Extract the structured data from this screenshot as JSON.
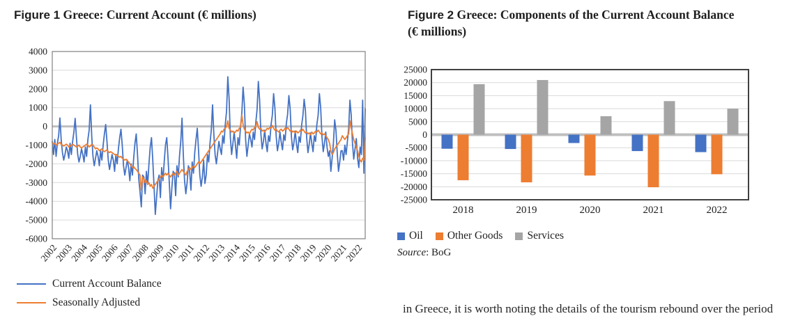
{
  "figure1": {
    "title_prefix": "Figure 1",
    "title": " Greece: Current Account (€ millions)",
    "legend": [
      {
        "label": "Current Account Balance",
        "color": "#4472C4"
      },
      {
        "label": "Seasonally Adjusted",
        "color": "#ED7D31"
      }
    ]
  },
  "figure2": {
    "title_prefix": "Figure 2",
    "title": " Greece: Components of the Current Account Balance (€ millions)",
    "legend": [
      {
        "label": "Oil",
        "color": "#4472C4"
      },
      {
        "label": "Other Goods",
        "color": "#ED7D31"
      },
      {
        "label": "Services",
        "color": "#A5A5A5"
      }
    ],
    "source_label": "Source",
    "source_text": ": BoG"
  },
  "bottom_text": {
    "fragment": "in Greece, it is worth noting the details of the tourism rebound over the period"
  },
  "chart_data": [
    {
      "type": "line",
      "title": "Greece: Current Account (€ millions)",
      "frequency": "monthly",
      "x_start": "2002-01",
      "x_end": "2022-07",
      "xticklabels": [
        "2002",
        "2003",
        "2004",
        "2005",
        "2006",
        "2007",
        "2008",
        "2009",
        "2010",
        "2011",
        "2012",
        "2013",
        "2014",
        "2015",
        "2016",
        "2017",
        "2018",
        "2019",
        "2020",
        "2021",
        "2022"
      ],
      "ylim": [
        -6000,
        4000
      ],
      "yticks": [
        4000,
        3000,
        2000,
        1000,
        0,
        -1000,
        -2000,
        -3000,
        -4000,
        -5000,
        -6000
      ],
      "grid": true,
      "legend_position": "bottom-left",
      "colors": {
        "grid": "#D9D9D9",
        "zero_line": "#BFBFBF",
        "border": "#808080"
      },
      "series": [
        {
          "name": "Current Account Balance",
          "color": "#4472C4",
          "values_by_year": {
            "2002": [
              -800,
              -1500,
              -700,
              -1600,
              -900,
              -500,
              450,
              -700,
              -1400,
              -1800,
              -1500,
              -1100
            ],
            "2003": [
              -1300,
              -1700,
              -900,
              -1500,
              -800,
              -300,
              430,
              -600,
              -1500,
              -1900,
              -1600,
              -1200
            ],
            "2004": [
              -1500,
              -1900,
              -1100,
              -1600,
              -700,
              -200,
              1150,
              -500,
              -1600,
              -2100,
              -1700,
              -1300
            ],
            "2005": [
              -1600,
              -2100,
              -1300,
              -1800,
              -1000,
              -400,
              100,
              -800,
              -1800,
              -2300,
              -1900,
              -1500
            ],
            "2006": [
              -1800,
              -2400,
              -1500,
              -2000,
              -1200,
              -600,
              -150,
              -1000,
              -2100,
              -2600,
              -2200,
              -1800
            ],
            "2007": [
              -2200,
              -2900,
              -2000,
              -2600,
              -1700,
              -900,
              -400,
              -1500,
              -2800,
              -3500,
              -4300,
              -2600
            ],
            "2008": [
              -2700,
              -3600,
              -2400,
              -3100,
              -2000,
              -1100,
              -600,
              -1800,
              -3200,
              -4700,
              -3800,
              -2900
            ],
            "2009": [
              -2600,
              -3800,
              -2200,
              -2900,
              -1900,
              -1000,
              -600,
              -1700,
              -3000,
              -4400,
              -3300,
              -2400
            ],
            "2010": [
              -2500,
              -3700,
              -2100,
              -2700,
              -1600,
              -800,
              440,
              -1500,
              -2900,
              -3600,
              -3000,
              -2100
            ],
            "2011": [
              -2400,
              -3400,
              -1900,
              -2500,
              -1400,
              -700,
              -100,
              -1300,
              -2600,
              -3200,
              -2700,
              -1800
            ],
            "2012": [
              -3050,
              -2600,
              -1500,
              -1900,
              -900,
              -200,
              1150,
              -400,
              -1500,
              -2000,
              -1400,
              -800
            ],
            "2013": [
              -1200,
              -1500,
              -500,
              -900,
              100,
              800,
              2650,
              1500,
              -600,
              -1500,
              -900,
              -300
            ],
            "2014": [
              -1000,
              -1700,
              -600,
              -1000,
              0,
              700,
              2100,
              1200,
              -700,
              -1600,
              -1000,
              -400
            ],
            "2015": [
              -700,
              -1100,
              -300,
              -700,
              200,
              900,
              2400,
              1400,
              -400,
              -1200,
              -800,
              -200
            ],
            "2016": [
              -900,
              -1350,
              -500,
              -800,
              100,
              600,
              1750,
              1000,
              -500,
              -1300,
              -900,
              -300
            ],
            "2017": [
              -850,
              -1250,
              -450,
              -750,
              150,
              650,
              1650,
              950,
              -550,
              -1250,
              -850,
              -250
            ],
            "2018": [
              -950,
              -1400,
              -550,
              -850,
              50,
              550,
              1450,
              850,
              -600,
              -1400,
              -950,
              -350
            ],
            "2019": [
              -900,
              -1350,
              -500,
              -800,
              100,
              600,
              1750,
              1000,
              -550,
              -1350,
              -900,
              -300
            ],
            "2020": [
              -1100,
              -1600,
              -1300,
              -2400,
              -1700,
              -900,
              350,
              -200,
              -1400,
              -2400,
              -1900,
              -1300
            ],
            "2021": [
              -1300,
              -1800,
              -1000,
              -1500,
              -800,
              -100,
              1400,
              600,
              -900,
              -1750,
              -1200,
              -650
            ],
            "2022": [
              -1700,
              -2200,
              -1100,
              -1500,
              1400,
              -2500,
              950
            ]
          }
        },
        {
          "name": "Seasonally Adjusted",
          "color": "#ED7D31",
          "values_by_year": {
            "2002": [
              -850,
              -950,
              -900,
              -1000,
              -950,
              -900,
              -850,
              -950,
              -1000,
              -1050,
              -1000,
              -950
            ],
            "2003": [
              -1000,
              -1100,
              -1050,
              -1000,
              -950,
              -1000,
              -1050,
              -1100,
              -1050,
              -1000,
              -1100,
              -1150
            ],
            "2004": [
              -1100,
              -1050,
              -1000,
              -950,
              -1000,
              -1100,
              -1050,
              -950,
              -1000,
              -1100,
              -1200,
              -1150
            ],
            "2005": [
              -1200,
              -1300,
              -1250,
              -1200,
              -1300,
              -1350,
              -1300,
              -1250,
              -1350,
              -1400,
              -1350,
              -1400
            ],
            "2006": [
              -1450,
              -1500,
              -1550,
              -1500,
              -1600,
              -1650,
              -1600,
              -1700,
              -1750,
              -1800,
              -1750,
              -1850
            ],
            "2007": [
              -1900,
              -2000,
              -2100,
              -2200,
              -2150,
              -2250,
              -2300,
              -2400,
              -2500,
              -2600,
              -3400,
              -2700
            ],
            "2008": [
              -2800,
              -3000,
              -2900,
              -3100,
              -3000,
              -3200,
              -3100,
              -3300,
              -3200,
              -3100,
              -3000,
              -2900
            ],
            "2009": [
              -2800,
              -2700,
              -2600,
              -2700,
              -2600,
              -2500,
              -2600,
              -2500,
              -2600,
              -2700,
              -2600,
              -2500
            ],
            "2010": [
              -2600,
              -2500,
              -2400,
              -2600,
              -2500,
              -2400,
              -2300,
              -2400,
              -2500,
              -2600,
              -2400,
              -2300
            ],
            "2011": [
              -2200,
              -2300,
              -2200,
              -2100,
              -2200,
              -2100,
              -2000,
              -1900,
              -2000,
              -1900,
              -1800,
              -1700
            ],
            "2012": [
              -1600,
              -1500,
              -1400,
              -1300,
              -1200,
              -1100,
              -1000,
              -900,
              -800,
              -700,
              -600,
              -500
            ],
            "2013": [
              -400,
              -250,
              -300,
              -150,
              -100,
              0,
              300,
              -100,
              -200,
              -300,
              -250,
              -350
            ],
            "2014": [
              -300,
              -200,
              -250,
              -100,
              -50,
              600,
              100,
              -150,
              -250,
              -350,
              -300,
              -400
            ],
            "2015": [
              -250,
              -150,
              -200,
              -50,
              0,
              250,
              -50,
              -150,
              -100,
              -250,
              -200,
              -300
            ],
            "2016": [
              -200,
              -100,
              -150,
              -50,
              -100,
              50,
              -100,
              -200,
              -150,
              -250,
              -300,
              -200
            ],
            "2017": [
              -150,
              -250,
              -200,
              -100,
              -150,
              -50,
              -150,
              -250,
              -200,
              -300,
              -250,
              -350
            ],
            "2018": [
              -250,
              -350,
              -300,
              -200,
              -250,
              -150,
              -250,
              -350,
              -300,
              -400,
              -350,
              -450
            ],
            "2019": [
              -300,
              -400,
              -350,
              -250,
              -300,
              -200,
              -300,
              -400,
              -350,
              -450,
              -400,
              -500
            ],
            "2020": [
              -600,
              -700,
              -900,
              -1300,
              -1500,
              -1400,
              -1200,
              -1100,
              -1000,
              -900,
              -800,
              -700
            ],
            "2021": [
              -500,
              -600,
              -700,
              -600,
              -500,
              -400,
              300,
              -100,
              -400,
              -700,
              -900,
              -1100
            ],
            "2022": [
              -1300,
              -1600,
              -1800,
              -1900,
              -1700,
              -1800,
              -600
            ]
          }
        }
      ]
    },
    {
      "type": "bar",
      "title": "Greece: Components of the Current Account Balance (€ millions)",
      "categories": [
        "2018",
        "2019",
        "2020",
        "2021",
        "2022"
      ],
      "ylim": [
        -25000,
        25000
      ],
      "yticks": [
        25000,
        20000,
        15000,
        10000,
        5000,
        0,
        -5000,
        -10000,
        -15000,
        -20000,
        -25000
      ],
      "grid": true,
      "legend_position": "bottom-left",
      "colors": {
        "grid": "#D9D9D9",
        "zero_line": "#BFBFBF",
        "border": "#404040"
      },
      "series": [
        {
          "name": "Oil",
          "color": "#4472C4",
          "values": [
            -5400,
            -5500,
            -3200,
            -6300,
            -6700
          ]
        },
        {
          "name": "Other Goods",
          "color": "#ED7D31",
          "values": [
            -17500,
            -18300,
            -15700,
            -20200,
            -15200
          ]
        },
        {
          "name": "Services",
          "color": "#A5A5A5",
          "values": [
            19400,
            21000,
            7100,
            12900,
            10000
          ]
        }
      ]
    }
  ]
}
